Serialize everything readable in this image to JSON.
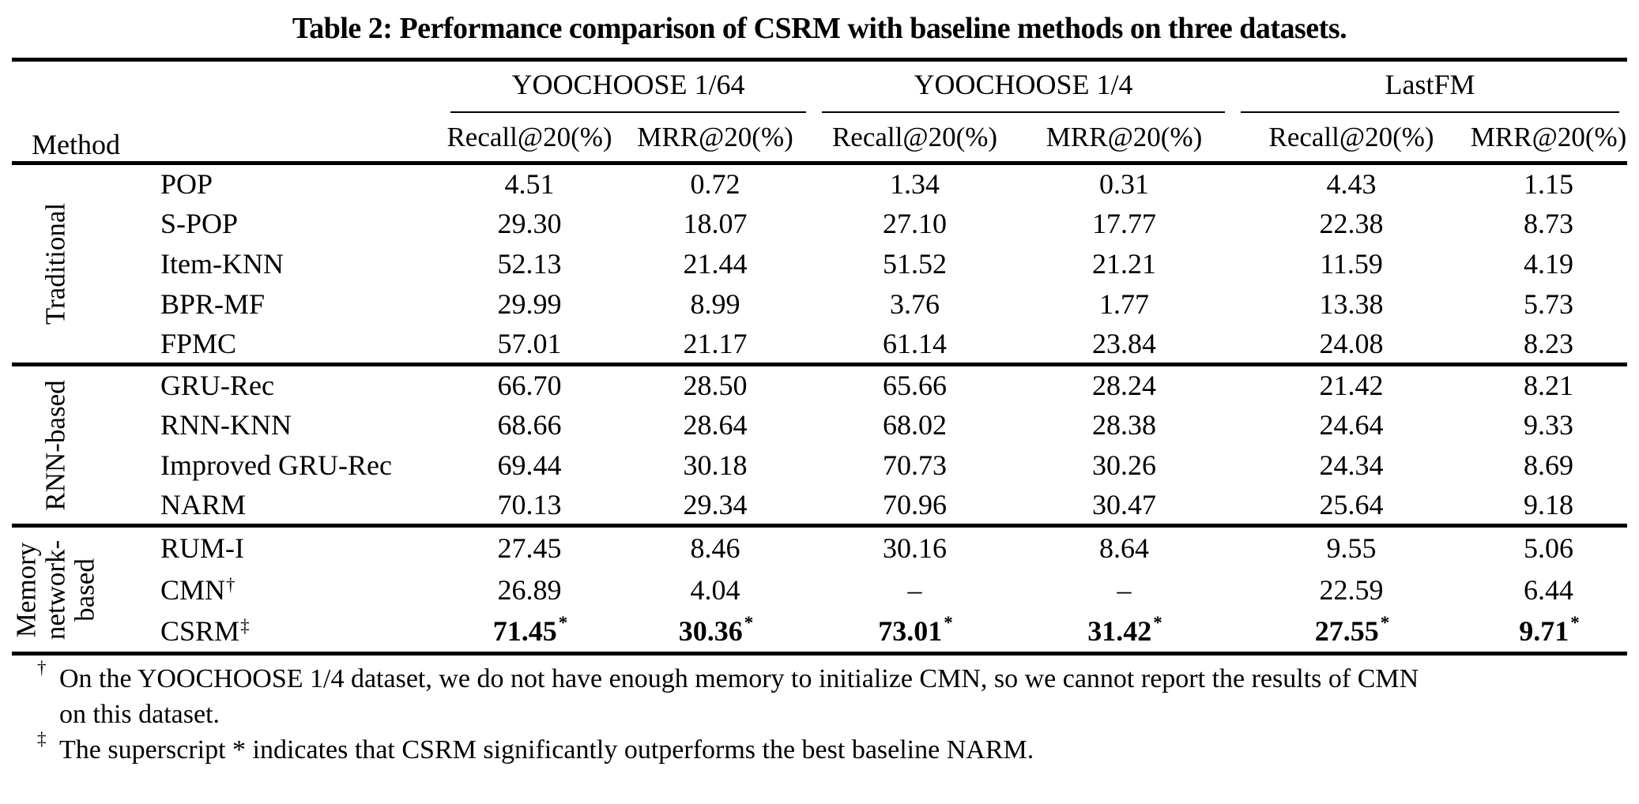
{
  "title": "Table 2: Performance comparison of CSRM with baseline methods on three datasets.",
  "colors": {
    "text": "#000000",
    "background": "#ffffff",
    "rules": "#000000"
  },
  "header": {
    "method_label": "Method",
    "dataset_groups": [
      "YOOCHOOSE 1/64",
      "YOOCHOOSE 1/4",
      "LastFM"
    ],
    "metric_headers": [
      "Recall@20(%)",
      "MRR@20(%)",
      "Recall@20(%)",
      "MRR@20(%)",
      "Recall@20(%)",
      "MRR@20(%)"
    ]
  },
  "groups": [
    {
      "label": "Traditional",
      "label_lines": [
        "Traditional"
      ],
      "rows": [
        {
          "method": {
            "name": "POP"
          },
          "cells": [
            {
              "v": "4.51"
            },
            {
              "v": "0.72"
            },
            {
              "v": "1.34"
            },
            {
              "v": "0.31"
            },
            {
              "v": "4.43"
            },
            {
              "v": "1.15"
            }
          ]
        },
        {
          "method": {
            "name": "S-POP"
          },
          "cells": [
            {
              "v": "29.30"
            },
            {
              "v": "18.07"
            },
            {
              "v": "27.10"
            },
            {
              "v": "17.77"
            },
            {
              "v": "22.38"
            },
            {
              "v": "8.73"
            }
          ]
        },
        {
          "method": {
            "name": "Item-KNN"
          },
          "cells": [
            {
              "v": "52.13"
            },
            {
              "v": "21.44"
            },
            {
              "v": "51.52"
            },
            {
              "v": "21.21"
            },
            {
              "v": "11.59"
            },
            {
              "v": "4.19"
            }
          ]
        },
        {
          "method": {
            "name": "BPR-MF"
          },
          "cells": [
            {
              "v": "29.99"
            },
            {
              "v": "8.99"
            },
            {
              "v": "3.76"
            },
            {
              "v": "1.77"
            },
            {
              "v": "13.38"
            },
            {
              "v": "5.73"
            }
          ]
        },
        {
          "method": {
            "name": "FPMC"
          },
          "cells": [
            {
              "v": "57.01"
            },
            {
              "v": "21.17"
            },
            {
              "v": "61.14"
            },
            {
              "v": "23.84"
            },
            {
              "v": "24.08"
            },
            {
              "v": "8.23"
            }
          ]
        }
      ]
    },
    {
      "label": "RNN-based",
      "label_lines": [
        "RNN-based"
      ],
      "rows": [
        {
          "method": {
            "name": "GRU-Rec"
          },
          "cells": [
            {
              "v": "66.70"
            },
            {
              "v": "28.50"
            },
            {
              "v": "65.66"
            },
            {
              "v": "28.24"
            },
            {
              "v": "21.42"
            },
            {
              "v": "8.21"
            }
          ]
        },
        {
          "method": {
            "name": "RNN-KNN"
          },
          "cells": [
            {
              "v": "68.66"
            },
            {
              "v": "28.64"
            },
            {
              "v": "68.02"
            },
            {
              "v": "28.38"
            },
            {
              "v": "24.64"
            },
            {
              "v": "9.33"
            }
          ]
        },
        {
          "method": {
            "name": "Improved GRU-Rec"
          },
          "cells": [
            {
              "v": "69.44"
            },
            {
              "v": "30.18"
            },
            {
              "v": "70.73"
            },
            {
              "v": "30.26"
            },
            {
              "v": "24.34"
            },
            {
              "v": "8.69"
            }
          ]
        },
        {
          "method": {
            "name": "NARM"
          },
          "cells": [
            {
              "v": "70.13"
            },
            {
              "v": "29.34"
            },
            {
              "v": "70.96"
            },
            {
              "v": "30.47"
            },
            {
              "v": "25.64"
            },
            {
              "v": "9.18"
            }
          ]
        }
      ]
    },
    {
      "label": "Memory network-based",
      "label_lines": [
        "Memory",
        "network-",
        "based"
      ],
      "rows": [
        {
          "method": {
            "name": "RUM-I"
          },
          "cells": [
            {
              "v": "27.45"
            },
            {
              "v": "8.46"
            },
            {
              "v": "30.16"
            },
            {
              "v": "8.64"
            },
            {
              "v": "9.55"
            },
            {
              "v": "5.06"
            }
          ]
        },
        {
          "method": {
            "name": "CMN",
            "sup": "†"
          },
          "cells": [
            {
              "v": "26.89"
            },
            {
              "v": "4.04"
            },
            {
              "v": "–"
            },
            {
              "v": "–"
            },
            {
              "v": "22.59"
            },
            {
              "v": "6.44"
            }
          ]
        },
        {
          "method": {
            "name": "CSRM",
            "sup": "‡"
          },
          "cells": [
            {
              "v": "71.45",
              "sup": "*",
              "bold": true
            },
            {
              "v": "30.36",
              "sup": "*",
              "bold": true
            },
            {
              "v": "73.01",
              "sup": "*",
              "bold": true
            },
            {
              "v": "31.42",
              "sup": "*",
              "bold": true
            },
            {
              "v": "27.55",
              "sup": "*",
              "bold": true
            },
            {
              "v": "9.71",
              "sup": "*",
              "bold": true
            }
          ]
        }
      ]
    }
  ],
  "footnotes": [
    {
      "marker": "†",
      "lines": [
        "On the YOOCHOOSE 1/4 dataset, we do not have enough memory to initialize CMN, so we cannot report the results of CMN",
        "on this dataset."
      ]
    },
    {
      "marker": "‡",
      "lines": [
        "The superscript * indicates that CSRM significantly outperforms the best baseline NARM."
      ]
    }
  ]
}
